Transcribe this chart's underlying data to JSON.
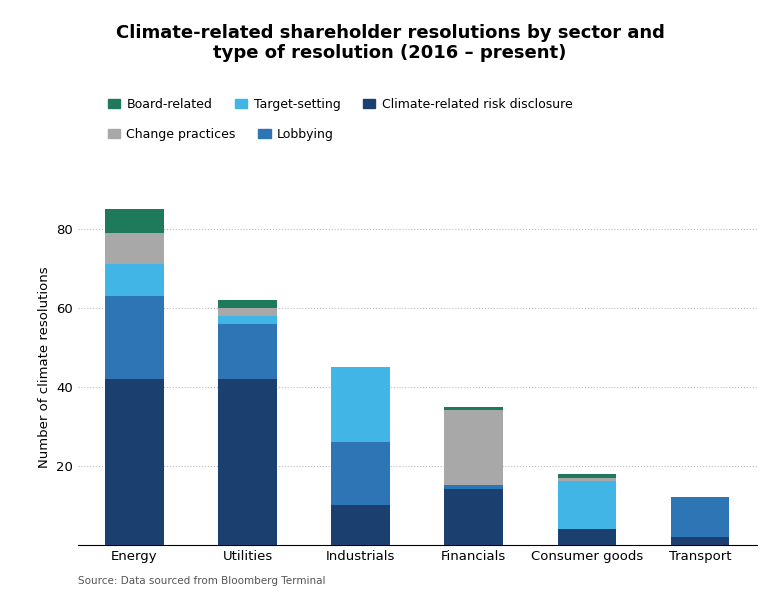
{
  "categories": [
    "Energy",
    "Utilities",
    "Industrials",
    "Financials",
    "Consumer goods",
    "Transport"
  ],
  "series": {
    "Climate-related risk disclosure": [
      42,
      42,
      10,
      14,
      4,
      2
    ],
    "Lobbying": [
      21,
      14,
      16,
      1,
      0,
      10
    ],
    "Target-setting": [
      8,
      2,
      19,
      0,
      12,
      0
    ],
    "Change practices": [
      8,
      2,
      0,
      19,
      1,
      0
    ],
    "Board-related": [
      6,
      2,
      0,
      1,
      1,
      0
    ]
  },
  "colors": {
    "Climate-related risk disclosure": "#1b3f6e",
    "Lobbying": "#2e75b6",
    "Target-setting": "#41b6e6",
    "Change practices": "#a8a8a8",
    "Board-related": "#1f7a5c"
  },
  "stack_order": [
    "Climate-related risk disclosure",
    "Lobbying",
    "Target-setting",
    "Change practices",
    "Board-related"
  ],
  "legend_row1": [
    "Board-related",
    "Target-setting",
    "Climate-related risk disclosure"
  ],
  "legend_row2": [
    "Change practices",
    "Lobbying"
  ],
  "title": "Climate-related shareholder resolutions by sector and\ntype of resolution (2016 – present)",
  "ylabel": "Number of climate resolutions",
  "source": "Source: Data sourced from Bloomberg Terminal",
  "ylim": [
    0,
    90
  ],
  "yticks": [
    20,
    40,
    60,
    80
  ],
  "bar_width": 0.52,
  "title_fontsize": 13,
  "axis_fontsize": 9.5,
  "legend_fontsize": 9,
  "tick_fontsize": 9.5,
  "background_color": "#ffffff"
}
